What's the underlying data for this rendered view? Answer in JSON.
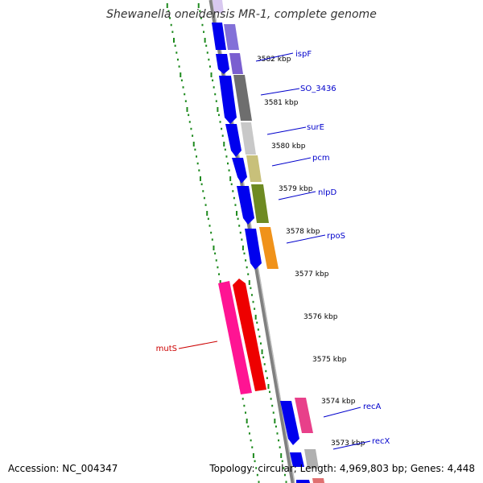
{
  "title": "Shewanella oneidensis MR-1, complete genome",
  "accession": "Accession: NC_004347",
  "summary": "Topology: circular; Length: 4,969,803 bp; Genes: 4,448",
  "colors": {
    "backbone": "#808080",
    "tick_dots": "#1e8a1e",
    "label_blue": "#0000cc",
    "label_red": "#cc0000"
  },
  "ticks": [
    "3582 kbp",
    "3581 kbp",
    "3580 kbp",
    "3579 kbp",
    "3578 kbp",
    "3577 kbp",
    "3576 kbp",
    "3575 kbp",
    "3574 kbp",
    "3573 kbp"
  ],
  "genes": [
    {
      "name": "ispF",
      "strand": "-"
    },
    {
      "name": "SO_3436",
      "strand": "-"
    },
    {
      "name": "surE",
      "strand": "-"
    },
    {
      "name": "pcm",
      "strand": "-"
    },
    {
      "name": "nlpD",
      "strand": "-"
    },
    {
      "name": "rpoS",
      "strand": "-"
    },
    {
      "name": "mutS",
      "strand": "+"
    },
    {
      "name": "recA",
      "strand": "-"
    },
    {
      "name": "recX",
      "strand": "-"
    }
  ]
}
